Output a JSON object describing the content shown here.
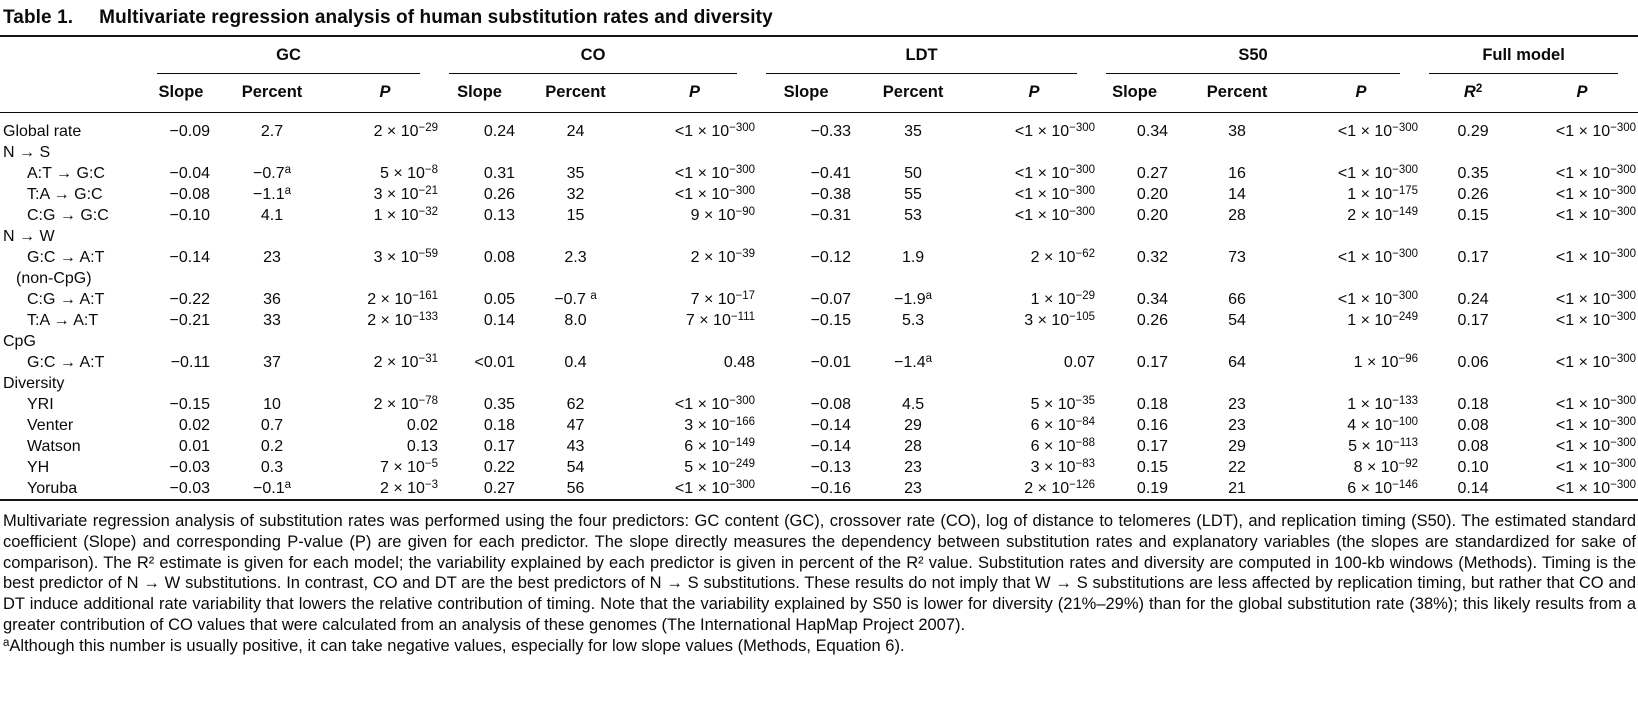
{
  "title": {
    "label": "Table 1.",
    "text": "Multivariate regression analysis of human substitution rates and diversity"
  },
  "header": {
    "groups": [
      {
        "name": "GC"
      },
      {
        "name": "CO"
      },
      {
        "name": "LDT"
      },
      {
        "name": "S50"
      },
      {
        "name": "Full model"
      }
    ],
    "sub": {
      "slope": "Slope",
      "percent": "Percent",
      "p": "P",
      "r2_base": "R",
      "r2_sup": "2"
    }
  },
  "table": {
    "rows": [
      {
        "label": "Global rate",
        "indent": 0,
        "cells": [
          "−0.09",
          "2.7",
          "2 × 10^−29",
          "0.24",
          "24",
          "<1 × 10^−300",
          "−0.33",
          "35",
          "<1 × 10^−300",
          "0.34",
          "38",
          "<1 × 10^−300",
          "0.29",
          "<1 × 10^−300"
        ]
      },
      {
        "label": "N → S",
        "indent": 0,
        "section": true
      },
      {
        "label": "A:T → G:C",
        "indent": 1,
        "cells": [
          "−0.04",
          "−0.7^a",
          "5 × 10^−8",
          "0.31",
          "35",
          "<1 × 10^−300",
          "−0.41",
          "50",
          "<1 × 10^−300",
          "0.27",
          "16",
          "<1 × 10^−300",
          "0.35",
          "<1 × 10^−300"
        ]
      },
      {
        "label": "T:A → G:C",
        "indent": 1,
        "cells": [
          "−0.08",
          "−1.1^a",
          "3 × 10^−21",
          "0.26",
          "32",
          "<1 × 10^−300",
          "−0.38",
          "55",
          "<1 × 10^−300",
          "0.20",
          "14",
          "1 × 10^−175",
          "0.26",
          "<1 × 10^−300"
        ]
      },
      {
        "label": "C:G → G:C",
        "indent": 1,
        "cells": [
          "−0.10",
          "4.1",
          "1 × 10^−32",
          "0.13",
          "15",
          "9 × 10^−90",
          "−0.31",
          "53",
          "<1 × 10^−300",
          "0.20",
          "28",
          "2 × 10^−149",
          "0.15",
          "<1 × 10^−300"
        ]
      },
      {
        "label": "N → W",
        "indent": 0,
        "section": true
      },
      {
        "label": "G:C → A:T",
        "label2": "(non-CpG)",
        "indent": 1,
        "cells": [
          "−0.14",
          "23",
          "3 × 10^−59",
          "0.08",
          "2.3",
          "2 × 10^−39",
          "−0.12",
          "1.9",
          "2 × 10^−62",
          "0.32",
          "73",
          "<1 × 10^−300",
          "0.17",
          "<1 × 10^−300"
        ]
      },
      {
        "label": "C:G → A:T",
        "indent": 1,
        "cells": [
          "−0.22",
          "36",
          "2 × 10^−161",
          "0.05",
          "−0.7 ^a",
          "7 × 10^−17",
          "−0.07",
          "−1.9^a",
          "1 × 10^−29",
          "0.34",
          "66",
          "<1 × 10^−300",
          "0.24",
          "<1 × 10^−300"
        ]
      },
      {
        "label": "T:A → A:T",
        "indent": 1,
        "cells": [
          "−0.21",
          "33",
          "2 × 10^−133",
          "0.14",
          "8.0",
          "7 × 10^−111",
          "−0.15",
          "5.3",
          "3 × 10^−105",
          "0.26",
          "54",
          "1 × 10^−249",
          "0.17",
          "<1 × 10^−300"
        ]
      },
      {
        "label": "CpG",
        "indent": 0,
        "section": true
      },
      {
        "label": "G:C → A:T",
        "indent": 1,
        "cells": [
          "−0.11",
          "37",
          "2 × 10^−31",
          "<0.01",
          "0.4",
          "0.48",
          "−0.01",
          "−1.4^a",
          "0.07",
          "0.17",
          "64",
          "1 × 10^−96",
          "0.06",
          "<1 × 10^−300"
        ]
      },
      {
        "label": "Diversity",
        "indent": 0,
        "section": true
      },
      {
        "label": "YRI",
        "indent": 1,
        "cells": [
          "−0.15",
          "10",
          "2 × 10^−78",
          "0.35",
          "62",
          "<1 × 10^−300",
          "−0.08",
          "4.5",
          "5 × 10^−35",
          "0.18",
          "23",
          "1 × 10^−133",
          "0.18",
          "<1 × 10^−300"
        ]
      },
      {
        "label": "Venter",
        "indent": 1,
        "cells": [
          "0.02",
          "0.7",
          "0.02",
          "0.18",
          "47",
          "3 × 10^−166",
          "−0.14",
          "29",
          "6 × 10^−84",
          "0.16",
          "23",
          "4 × 10^−100",
          "0.08",
          "<1 × 10^−300"
        ]
      },
      {
        "label": "Watson",
        "indent": 1,
        "cells": [
          "0.01",
          "0.2",
          "0.13",
          "0.17",
          "43",
          "6 × 10^−149",
          "−0.14",
          "28",
          "6 × 10^−88",
          "0.17",
          "29",
          "5 × 10^−113",
          "0.08",
          "<1 × 10^−300"
        ]
      },
      {
        "label": "YH",
        "indent": 1,
        "cells": [
          "−0.03",
          "0.3",
          "7 × 10^−5",
          "0.22",
          "54",
          "5 × 10^−249",
          "−0.13",
          "23",
          "3 × 10^−83",
          "0.15",
          "22",
          "8 × 10^−92",
          "0.10",
          "<1 × 10^−300"
        ]
      },
      {
        "label": "Yoruba",
        "indent": 1,
        "cells": [
          "−0.03",
          "−0.1^a",
          "2 × 10^−3",
          "0.27",
          "56",
          "<1 × 10^−300",
          "−0.16",
          "23",
          "2 × 10^−126",
          "0.19",
          "21",
          "6 × 10^−146",
          "0.14",
          "<1 × 10^−300"
        ]
      }
    ]
  },
  "footnotes": {
    "body": "Multivariate regression analysis of substitution rates was performed using the four predictors: GC content (GC), crossover rate (CO), log of distance to telomeres (LDT), and replication timing (S50). The estimated standard coefficient (Slope) and corresponding P-value (P) are given for each predictor. The slope directly measures the dependency between substitution rates and explanatory variables (the slopes are standardized for sake of comparison). The R² estimate is given for each model; the variability explained by each predictor is given in percent of the R² value. Substitution rates and diversity are computed in 100-kb windows (Methods). Timing is the best predictor of N → W substitutions. In contrast, CO and DT are the best predictors of N → S substitutions. These results do not imply that W → S substitutions are less affected by replication timing, but rather that CO and DT induce additional rate variability that lowers the relative contribution of timing. Note that the variability explained by S50 is lower for diversity (21%–29%) than for the global substitution rate (38%); this likely results from a greater contribution of CO values that were calculated from an analysis of these genomes (The International HapMap Project 2007).",
    "marker": "a",
    "note_a": "Although this number is usually positive, it can take negative values, especially for low slope values (Methods, Equation 6)."
  }
}
